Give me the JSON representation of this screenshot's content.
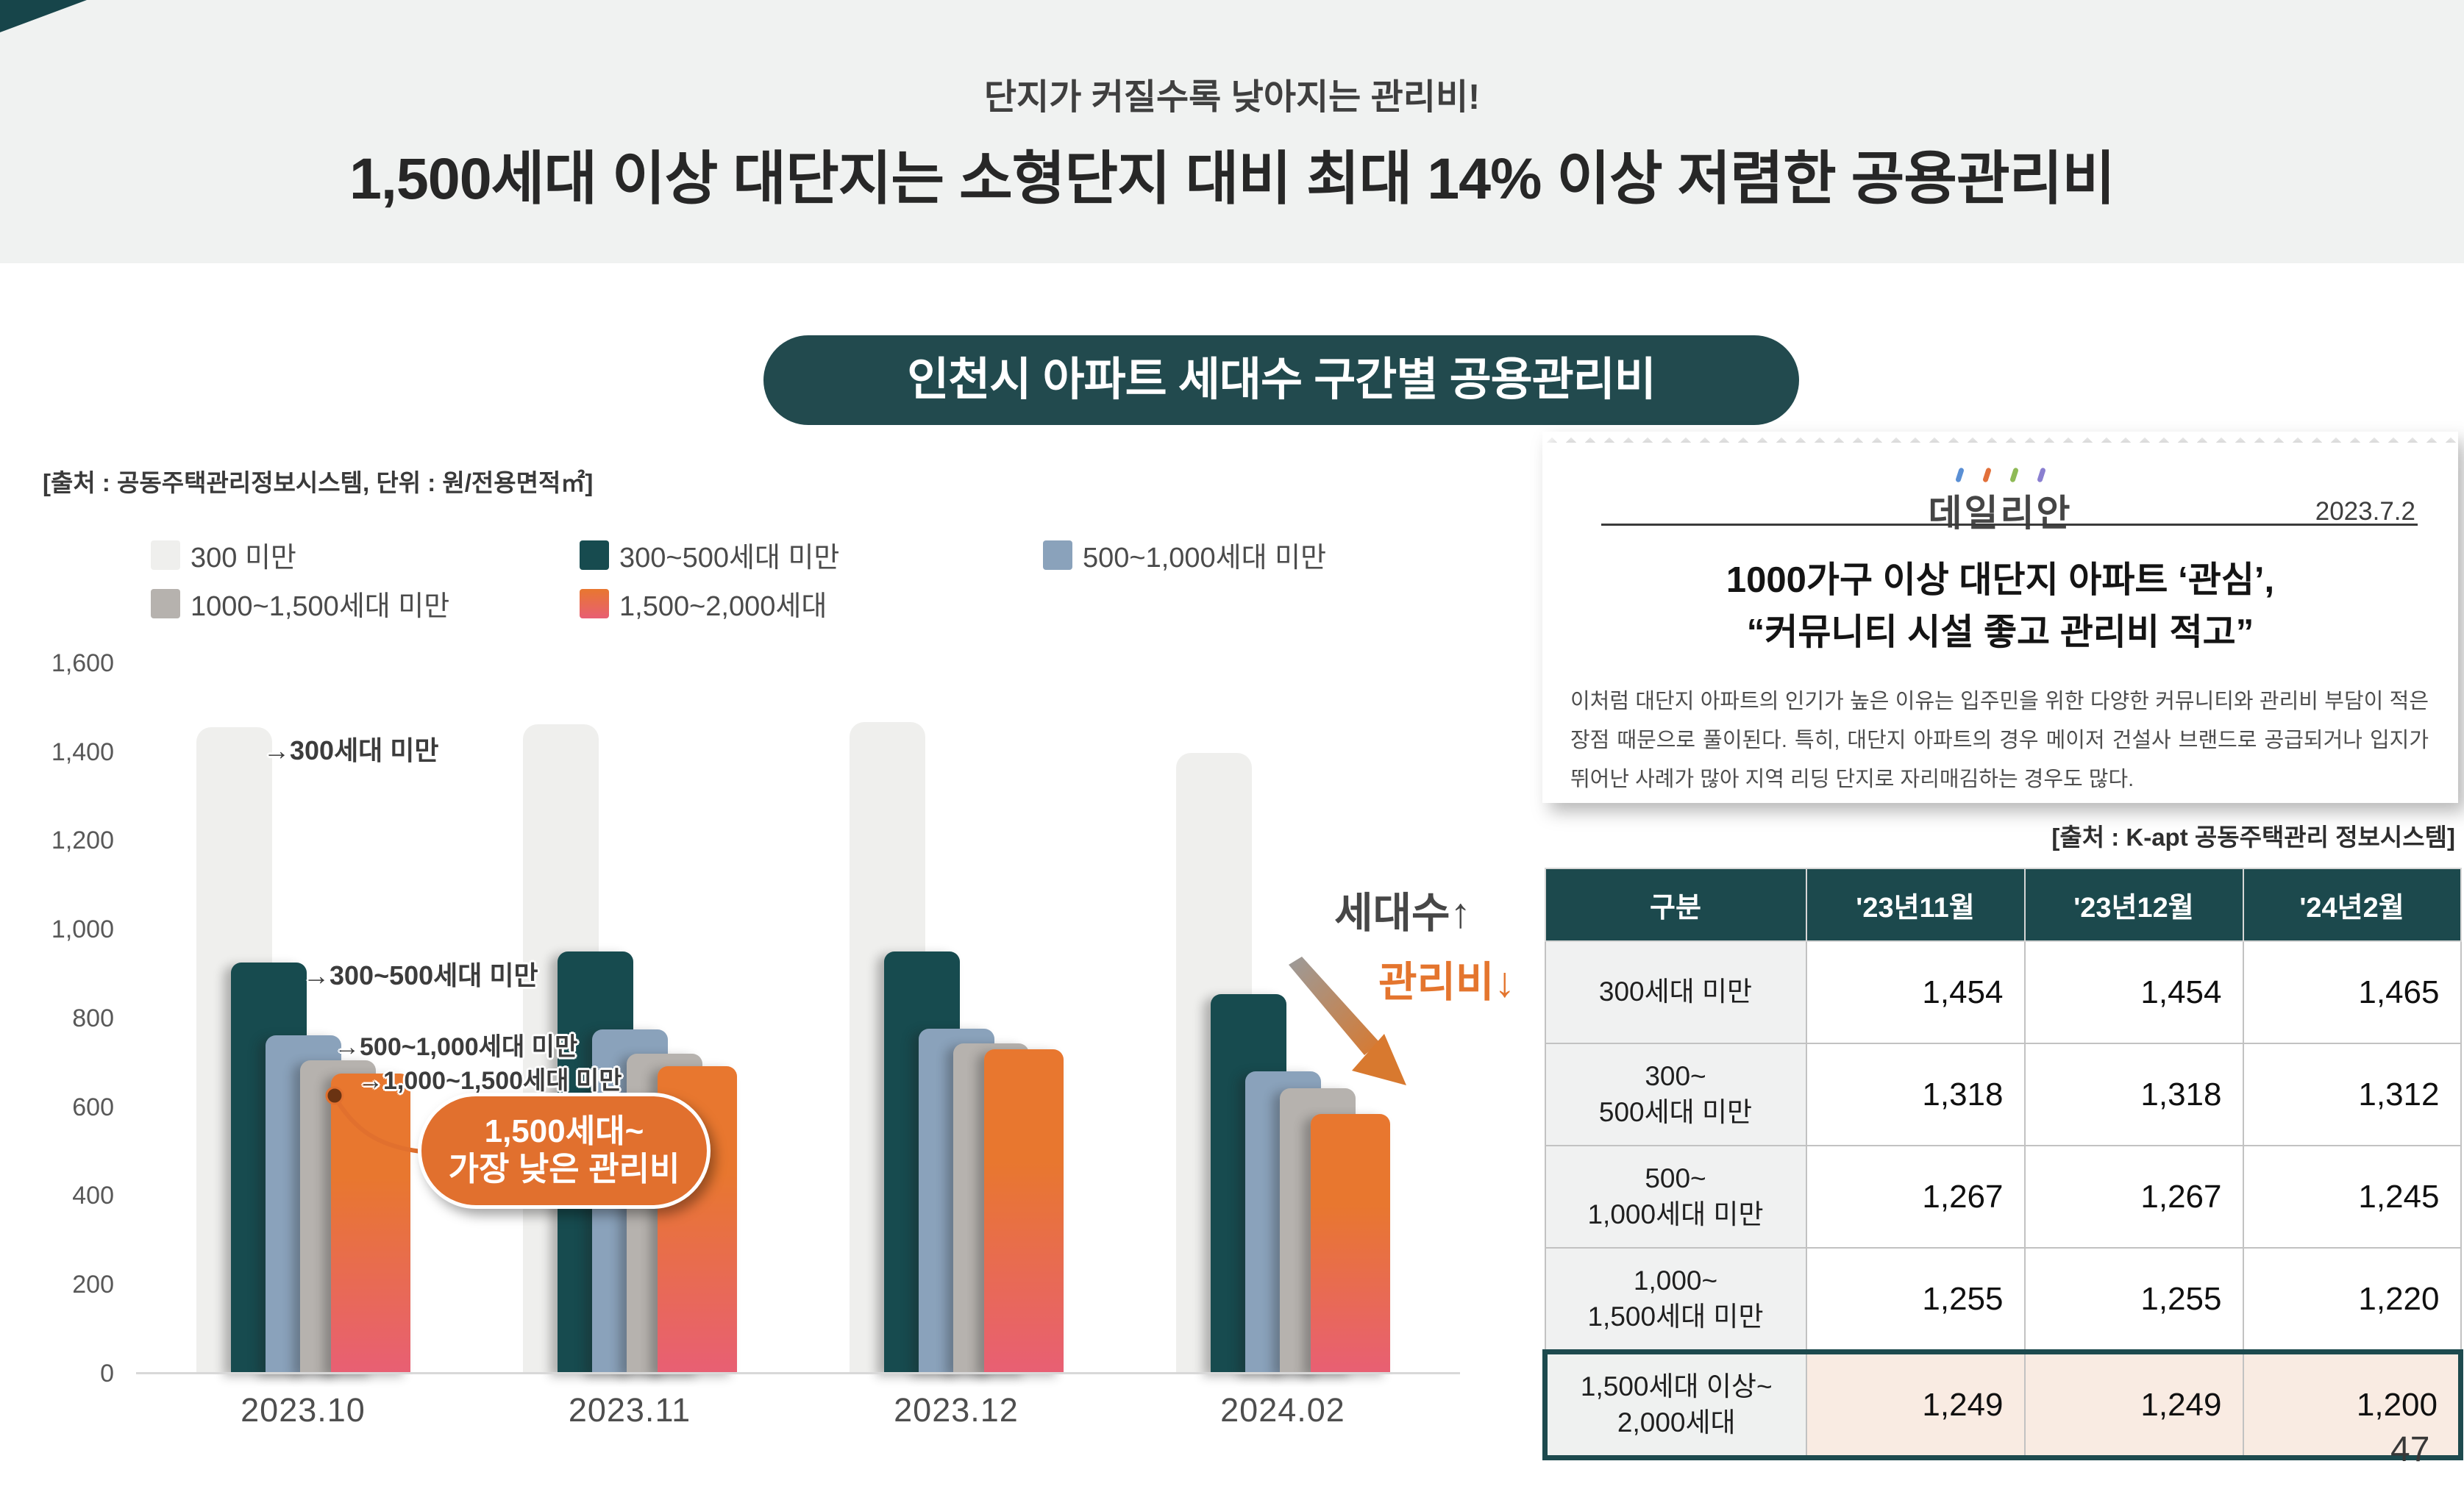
{
  "header": {
    "subtitle": "단지가 커질수록 낮아지는 관리비!",
    "title": "1,500세대 이상 대단지는 소형단지 대비 최대 14% 이상 저렴한 공용관리비"
  },
  "badge": {
    "label": "인천시 아파트 세대수 구간별 공용관리비"
  },
  "chart": {
    "source_note": "[출처 : 공동주택관리정보시스템, 단위 : 원/전용면적㎡]",
    "annotations": [
      {
        "text": "→300세대 미만"
      },
      {
        "text": "→300~500세대 미만"
      },
      {
        "text": "→500~1,000세대 미만"
      },
      {
        "text": "→1,000~1,500세대 미만"
      }
    ],
    "callout": {
      "line1": "1,500세대~",
      "line2": "가장 낮은 관리비"
    },
    "trend": {
      "up": "세대수↑",
      "down": "관리비↓"
    }
  },
  "chart_data": {
    "type": "bar",
    "title": "인천시 아파트 세대수 구간별 공용관리비",
    "xlabel": "",
    "ylabel": "원/전용면적㎡",
    "ylim": [
      0,
      1600
    ],
    "ytick_step": 200,
    "grid": false,
    "legend_position": "top",
    "categories": [
      "2023.10",
      "2023.11",
      "2023.12",
      "2024.02"
    ],
    "series": [
      {
        "name": "300 미만",
        "color": "#efefed",
        "values": [
          1455,
          1462,
          1468,
          1398
        ]
      },
      {
        "name": "300~500세대 미만",
        "color": "#174b4f",
        "values": [
          925,
          950,
          950,
          855
        ]
      },
      {
        "name": "500~1,000세대 미만",
        "color": "#8aa2bb",
        "values": [
          762,
          775,
          777,
          680
        ]
      },
      {
        "name": "1000~1,500세대 미만",
        "color": "#b6b2ae",
        "values": [
          706,
          720,
          744,
          642
        ]
      },
      {
        "name": "1,500~2,000세대",
        "color": "#e8772f",
        "color2": "#e85f74",
        "values": [
          676,
          692,
          731,
          585
        ]
      }
    ]
  },
  "news": {
    "masthead": "데일리안",
    "tick_colors": [
      "#5a8fd4",
      "#e2703a",
      "#8fba56",
      "#8a7fd0"
    ],
    "date": "2023.7.2",
    "headline_line1": "1000가구 이상 대단지 아파트 ‘관심’,",
    "headline_line2": "“커뮤니티 시설 좋고 관리비 적고”",
    "body": "이처럼 대단지 아파트의 인기가 높은 이유는 입주민을 위한 다양한 커뮤니티와 관리비 부담이 적은 장점 때문으로 풀이된다. 특히, 대단지 아파트의 경우 메이저 건설사 브랜드로 공급되거나 입지가 뛰어난 사례가 많아 지역 리딩 단지로 자리매김하는 경우도 많다."
  },
  "table": {
    "source": "[출처 : K-apt 공동주택관리 정보시스템]",
    "columns": [
      "구분",
      "'23년11월",
      "'23년12월",
      "'24년2월"
    ],
    "rows": [
      {
        "label": "300세대 미만",
        "values": [
          "1,454",
          "1,454",
          "1,465"
        ],
        "highlight": false
      },
      {
        "label": "300~\n500세대 미만",
        "values": [
          "1,318",
          "1,318",
          "1,312"
        ],
        "highlight": false
      },
      {
        "label": "500~\n1,000세대 미만",
        "values": [
          "1,267",
          "1,267",
          "1,245"
        ],
        "highlight": false
      },
      {
        "label": "1,000~\n1,500세대 미만",
        "values": [
          "1,255",
          "1,255",
          "1,220"
        ],
        "highlight": false
      },
      {
        "label": "1,500세대 이상~\n2,000세대",
        "values": [
          "1,249",
          "1,249",
          "1,200"
        ],
        "highlight": true
      }
    ]
  },
  "page_number": "47",
  "colors": {
    "band_bg": "#f0f2f1",
    "badge_bg": "#224a4e",
    "accent_orange": "#e1702e",
    "table_header": "#1c494d",
    "highlight_bg": "#f9ebe2"
  }
}
